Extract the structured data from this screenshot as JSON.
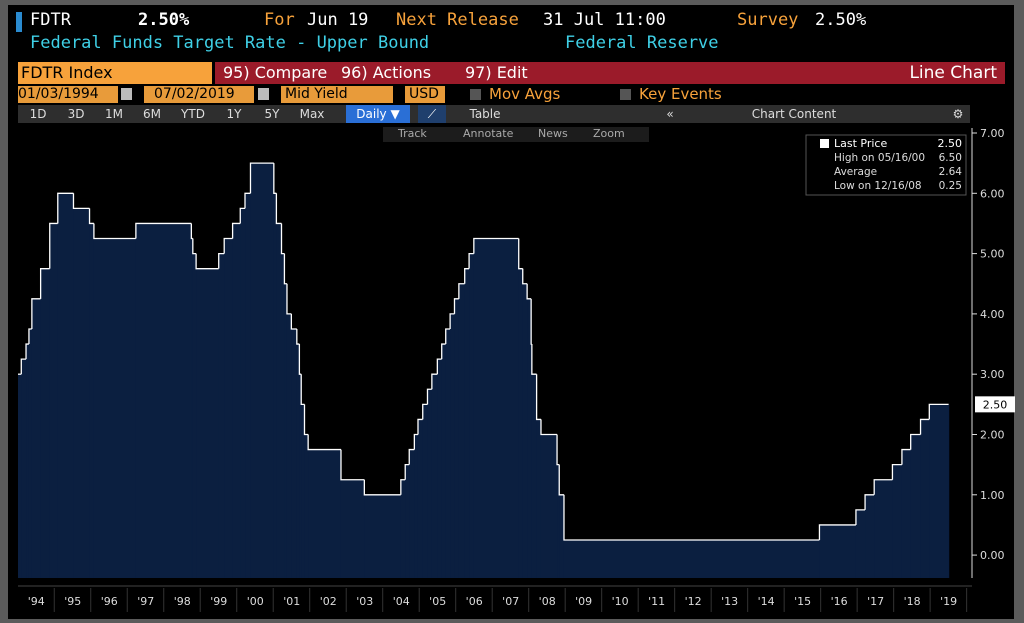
{
  "header": {
    "ticker": "FDTR",
    "price": "2.50%",
    "for_label": "For",
    "for_value": "Jun 19",
    "release_label": "Next Release",
    "release_value": "31 Jul 11:00",
    "survey_label": "Survey",
    "survey_value": "2.50%",
    "description": "Federal Funds Target Rate - Upper Bound",
    "source": "Federal Reserve"
  },
  "menu": {
    "security": "FDTR Index",
    "buttons": [
      "95) Compare",
      "96) Actions",
      "97) Edit"
    ],
    "view": "Line Chart"
  },
  "settings": {
    "start_date": "01/03/1994",
    "end_date": "07/02/2019",
    "field": "Mid Yield",
    "currency": "USD",
    "mov_avgs": "Mov Avgs",
    "key_events": "Key Events"
  },
  "periods": {
    "buttons": [
      "1D",
      "3D",
      "1M",
      "6M",
      "YTD",
      "1Y",
      "5Y",
      "Max"
    ],
    "frequency": "Daily ▼",
    "table": "Table",
    "chart_content": "Chart Content"
  },
  "tools": [
    "Track",
    "Annotate",
    "News",
    "Zoom"
  ],
  "chart_data": {
    "type": "step-area",
    "x": [
      1994.0,
      1994.09,
      1994.22,
      1994.3,
      1994.38,
      1994.62,
      1994.87,
      1995.09,
      1995.52,
      1995.96,
      1996.08,
      1997.23,
      1998.75,
      1998.79,
      1998.88,
      1999.5,
      1999.65,
      1999.88,
      2000.09,
      2000.22,
      2000.37,
      2001.01,
      2001.08,
      2001.22,
      2001.3,
      2001.37,
      2001.49,
      2001.64,
      2001.71,
      2001.76,
      2001.85,
      2001.95,
      2002.85,
      2003.49,
      2004.49,
      2004.61,
      2004.72,
      2004.86,
      2004.96,
      2005.09,
      2005.22,
      2005.34,
      2005.49,
      2005.61,
      2005.72,
      2005.84,
      2005.96,
      2006.08,
      2006.24,
      2006.36,
      2006.49,
      2007.72,
      2007.83,
      2007.95,
      2008.06,
      2008.08,
      2008.21,
      2008.33,
      2008.77,
      2008.83,
      2008.96,
      2015.96,
      2016.96,
      2017.21,
      2017.46,
      2017.96,
      2018.22,
      2018.46,
      2018.73,
      2018.97,
      2019.5
    ],
    "series": [
      {
        "name": "Last Price",
        "color": "#0b1f40",
        "line_color": "#ffffff",
        "values": [
          3.0,
          3.25,
          3.5,
          3.75,
          4.25,
          4.75,
          5.5,
          6.0,
          5.75,
          5.5,
          5.25,
          5.5,
          5.25,
          5.0,
          4.75,
          5.0,
          5.25,
          5.5,
          5.75,
          6.0,
          6.5,
          6.0,
          5.5,
          5.0,
          4.5,
          4.0,
          3.75,
          3.5,
          3.0,
          2.5,
          2.0,
          1.75,
          1.25,
          1.0,
          1.25,
          1.5,
          1.75,
          2.0,
          2.25,
          2.5,
          2.75,
          3.0,
          3.25,
          3.5,
          3.75,
          4.0,
          4.25,
          4.5,
          4.75,
          5.0,
          5.25,
          4.75,
          4.5,
          4.25,
          3.5,
          3.0,
          2.25,
          2.0,
          1.5,
          1.0,
          0.25,
          0.5,
          0.75,
          1.0,
          1.25,
          1.5,
          1.75,
          2.0,
          2.25,
          2.5,
          2.5
        ],
        "value_labels": [
          null,
          null,
          null,
          null,
          null,
          null,
          null,
          null,
          null,
          null,
          null,
          null,
          null,
          null,
          null,
          null,
          null,
          null,
          null,
          null,
          null,
          null,
          null,
          null,
          null,
          null,
          null,
          null,
          null,
          null,
          null,
          null,
          null,
          null,
          null,
          null,
          null,
          null,
          null,
          null,
          null,
          null,
          null,
          null,
          null,
          null,
          null,
          null,
          null,
          null,
          null,
          null,
          null,
          null,
          null,
          null,
          null,
          null,
          null,
          null,
          null,
          null,
          null,
          null,
          null,
          null,
          null,
          null,
          null,
          null,
          "2.50"
        ]
      }
    ],
    "stats": [
      {
        "name": "High on 05/16/00",
        "value": "6.50"
      },
      {
        "name": "Average",
        "value": "2.64"
      },
      {
        "name": "Low on 12/16/08",
        "value": "0.25"
      }
    ],
    "last_value": "2.50",
    "xlim": [
      1994.0,
      2020.14
    ],
    "xticks": [
      {
        "value": 1994.5,
        "label": "'94"
      },
      {
        "value": 1995.5,
        "label": "'95"
      },
      {
        "value": 1996.5,
        "label": "'96"
      },
      {
        "value": 1997.5,
        "label": "'97"
      },
      {
        "value": 1998.5,
        "label": "'98"
      },
      {
        "value": 1999.5,
        "label": "'99"
      },
      {
        "value": 2000.5,
        "label": "'00"
      },
      {
        "value": 2001.5,
        "label": "'01"
      },
      {
        "value": 2002.5,
        "label": "'02"
      },
      {
        "value": 2003.5,
        "label": "'03"
      },
      {
        "value": 2004.5,
        "label": "'04"
      },
      {
        "value": 2005.5,
        "label": "'05"
      },
      {
        "value": 2006.5,
        "label": "'06"
      },
      {
        "value": 2007.5,
        "label": "'07"
      },
      {
        "value": 2008.5,
        "label": "'08"
      },
      {
        "value": 2009.5,
        "label": "'09"
      },
      {
        "value": 2010.5,
        "label": "'10"
      },
      {
        "value": 2011.5,
        "label": "'11"
      },
      {
        "value": 2012.5,
        "label": "'12"
      },
      {
        "value": 2013.5,
        "label": "'13"
      },
      {
        "value": 2014.5,
        "label": "'14"
      },
      {
        "value": 2015.5,
        "label": "'15"
      },
      {
        "value": 2016.5,
        "label": "'16"
      },
      {
        "value": 2017.5,
        "label": "'17"
      },
      {
        "value": 2018.5,
        "label": "'18"
      },
      {
        "value": 2019.5,
        "label": "'19"
      }
    ],
    "ylim": [
      -0.38,
      7.0
    ],
    "yticks": [
      {
        "value": 0,
        "label": "0.00"
      },
      {
        "value": 1,
        "label": "1.00"
      },
      {
        "value": 2,
        "label": "2.00"
      },
      {
        "value": 3,
        "label": "3.00"
      },
      {
        "value": 4,
        "label": "4.00"
      },
      {
        "value": 5,
        "label": "5.00"
      },
      {
        "value": 6,
        "label": "6.00"
      },
      {
        "value": 7,
        "label": "7.00"
      }
    ]
  }
}
